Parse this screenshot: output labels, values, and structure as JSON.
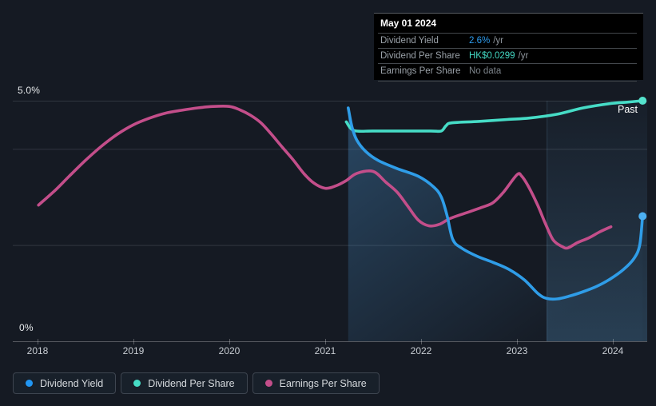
{
  "colors": {
    "background": "#151a23",
    "dividend_yield": "#2f9de8",
    "dividend_per_share": "#46dcc6",
    "earnings_per_share": "#c34e8a",
    "grid": "rgba(194,205,214,0.16)",
    "axis": "rgba(255,255,255,0.28)",
    "band_edge": "rgba(150,205,250,0.15)"
  },
  "chart_data": {
    "type": "line",
    "x_axis": {
      "ticks": [
        2018,
        2019,
        2020,
        2021,
        2022,
        2023,
        2024
      ],
      "range": [
        2017.74,
        2024.36
      ]
    },
    "y_axis": {
      "min": 0,
      "max": 5,
      "unit": "%",
      "top_label": "5.0%",
      "bottom_label": "0%",
      "gridlines_pct": [
        5,
        4,
        2
      ]
    },
    "past_label": "Past",
    "legend_position": "bottom-left",
    "highlight_band_years": [
      2023.31,
      2024.36
    ],
    "series": [
      {
        "id": "earnings-per-share",
        "name": "Earnings Per Share",
        "color": "#c34e8a",
        "unit": "chart-scale",
        "area": false,
        "end_dot": false,
        "points": [
          [
            2018.01,
            2.83
          ],
          [
            2018.19,
            3.15
          ],
          [
            2018.33,
            3.43
          ],
          [
            2018.5,
            3.76
          ],
          [
            2018.67,
            4.06
          ],
          [
            2018.83,
            4.3
          ],
          [
            2019.0,
            4.5
          ],
          [
            2019.17,
            4.64
          ],
          [
            2019.33,
            4.74
          ],
          [
            2019.5,
            4.8
          ],
          [
            2019.67,
            4.85
          ],
          [
            2019.83,
            4.88
          ],
          [
            2020.0,
            4.88
          ],
          [
            2020.11,
            4.81
          ],
          [
            2020.22,
            4.7
          ],
          [
            2020.33,
            4.54
          ],
          [
            2020.44,
            4.3
          ],
          [
            2020.55,
            4.04
          ],
          [
            2020.67,
            3.76
          ],
          [
            2020.78,
            3.48
          ],
          [
            2020.88,
            3.29
          ],
          [
            2021.0,
            3.18
          ],
          [
            2021.11,
            3.23
          ],
          [
            2021.22,
            3.34
          ],
          [
            2021.33,
            3.49
          ],
          [
            2021.5,
            3.53
          ],
          [
            2021.63,
            3.31
          ],
          [
            2021.75,
            3.1
          ],
          [
            2021.86,
            2.81
          ],
          [
            2021.97,
            2.52
          ],
          [
            2022.08,
            2.4
          ],
          [
            2022.19,
            2.43
          ],
          [
            2022.3,
            2.55
          ],
          [
            2022.47,
            2.67
          ],
          [
            2022.63,
            2.78
          ],
          [
            2022.75,
            2.88
          ],
          [
            2022.86,
            3.1
          ],
          [
            2023.0,
            3.46
          ],
          [
            2023.05,
            3.43
          ],
          [
            2023.13,
            3.18
          ],
          [
            2023.22,
            2.81
          ],
          [
            2023.3,
            2.43
          ],
          [
            2023.38,
            2.1
          ],
          [
            2023.47,
            1.97
          ],
          [
            2023.53,
            1.94
          ],
          [
            2023.63,
            2.05
          ],
          [
            2023.75,
            2.15
          ],
          [
            2023.86,
            2.27
          ],
          [
            2023.98,
            2.38
          ]
        ]
      },
      {
        "id": "dividend-per-share",
        "name": "Dividend Per Share",
        "color": "#46dcc6",
        "dot_color": "#55e3cd",
        "unit": "chart-scale",
        "area": false,
        "end_dot": true,
        "end_value_display": "HK$0.0299 /yr",
        "points": [
          [
            2021.22,
            4.56
          ],
          [
            2021.3,
            4.38
          ],
          [
            2021.5,
            4.37
          ],
          [
            2021.8,
            4.37
          ],
          [
            2022.1,
            4.37
          ],
          [
            2022.21,
            4.37
          ],
          [
            2022.26,
            4.48
          ],
          [
            2022.32,
            4.54
          ],
          [
            2022.6,
            4.57
          ],
          [
            2022.9,
            4.61
          ],
          [
            2023.13,
            4.64
          ],
          [
            2023.42,
            4.72
          ],
          [
            2023.69,
            4.85
          ],
          [
            2023.97,
            4.94
          ],
          [
            2024.15,
            4.97
          ],
          [
            2024.31,
            5.0
          ]
        ]
      },
      {
        "id": "dividend-yield",
        "name": "Dividend Yield",
        "color": "#2f9de8",
        "dot_color": "#4cb0f2",
        "unit": "%",
        "area": true,
        "end_dot": true,
        "end_value_display": "2.6% /yr",
        "points": [
          [
            2021.24,
            4.85
          ],
          [
            2021.28,
            4.45
          ],
          [
            2021.33,
            4.18
          ],
          [
            2021.42,
            3.95
          ],
          [
            2021.55,
            3.76
          ],
          [
            2021.75,
            3.59
          ],
          [
            2021.97,
            3.43
          ],
          [
            2022.13,
            3.21
          ],
          [
            2022.21,
            3.0
          ],
          [
            2022.27,
            2.62
          ],
          [
            2022.33,
            2.12
          ],
          [
            2022.42,
            1.94
          ],
          [
            2022.58,
            1.77
          ],
          [
            2022.75,
            1.64
          ],
          [
            2022.92,
            1.49
          ],
          [
            2023.08,
            1.27
          ],
          [
            2023.22,
            0.99
          ],
          [
            2023.31,
            0.89
          ],
          [
            2023.42,
            0.88
          ],
          [
            2023.55,
            0.94
          ],
          [
            2023.69,
            1.03
          ],
          [
            2023.83,
            1.14
          ],
          [
            2023.97,
            1.29
          ],
          [
            2024.11,
            1.49
          ],
          [
            2024.22,
            1.72
          ],
          [
            2024.28,
            2.0
          ],
          [
            2024.31,
            2.6
          ]
        ]
      }
    ]
  },
  "tooltip": {
    "date": "May 01 2024",
    "rows": [
      {
        "label": "Dividend Yield",
        "value": "2.6%",
        "suffix": "/yr",
        "color": "#2e9df0"
      },
      {
        "label": "Dividend Per Share",
        "value": "HK$0.0299",
        "suffix": "/yr",
        "color": "#43d8c3"
      },
      {
        "label": "Earnings Per Share",
        "value": "No data",
        "suffix": "",
        "color": "#7d848b"
      }
    ]
  },
  "legend": {
    "items": [
      {
        "label": "Dividend Yield",
        "color": "#2196f3"
      },
      {
        "label": "Dividend Per Share",
        "color": "#46dcc6"
      },
      {
        "label": "Earnings Per Share",
        "color": "#c34e8a"
      }
    ]
  }
}
